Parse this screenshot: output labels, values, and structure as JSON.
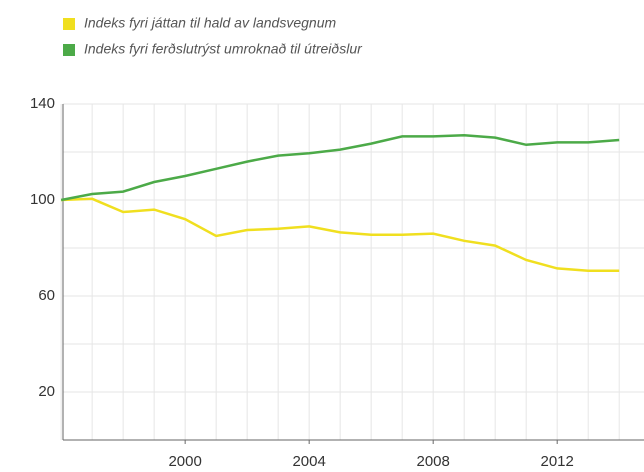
{
  "chart_data": {
    "type": "line",
    "x": [
      1996,
      1997,
      1998,
      1999,
      2000,
      2001,
      2002,
      2003,
      2004,
      2005,
      2006,
      2007,
      2008,
      2009,
      2010,
      2011,
      2012,
      2013,
      2014
    ],
    "series": [
      {
        "name": "Indeks fyri játtan til hald av landsvegnum",
        "color": "#f0df1f",
        "values": [
          100,
          100.5,
          95,
          96,
          92,
          85,
          87.5,
          88,
          89,
          86.5,
          85.5,
          85.5,
          86,
          83,
          81,
          75,
          71.5,
          70.5,
          70.5
        ]
      },
      {
        "name": "Indeks fyri ferðslutrýst umroknað til útreiðslur",
        "color": "#4caa48",
        "values": [
          100,
          102.5,
          103.5,
          107.5,
          110,
          113,
          116,
          118.5,
          119.5,
          121,
          123.5,
          126.5,
          126.5,
          127,
          126,
          123,
          124,
          124,
          125
        ]
      }
    ],
    "xlim": [
      1996.06,
      2014.8
    ],
    "xticks": [
      2000,
      2004,
      2008,
      2012
    ],
    "ylim": [
      0,
      140
    ],
    "yticks": [
      20,
      60,
      100,
      140
    ],
    "yminor": [
      40,
      80,
      120
    ],
    "grid": true
  }
}
